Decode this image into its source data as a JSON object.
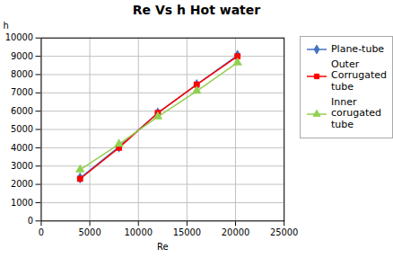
{
  "chart_data": {
    "type": "line",
    "title": "Re  Vs h Hot water",
    "x_label": "Re",
    "y_label": "h",
    "xlim": [
      0,
      25000
    ],
    "ylim": [
      0,
      10000
    ],
    "xticks": [
      0,
      5000,
      10000,
      15000,
      20000,
      25000
    ],
    "yticks": [
      0,
      1000,
      2000,
      3000,
      4000,
      5000,
      6000,
      7000,
      8000,
      9000,
      10000
    ],
    "grid": true,
    "legend": "right",
    "x": [
      4000,
      8000,
      12000,
      16000,
      20200
    ],
    "series": [
      {
        "name": "Plane-tube",
        "color": "#4472c4",
        "marker": "diamond",
        "values": [
          2350,
          4050,
          5900,
          7450,
          9050
        ]
      },
      {
        "name": "Outer\nCorrugated\ntube",
        "color": "#ff0000",
        "marker": "square",
        "values": [
          2300,
          4000,
          5900,
          7450,
          9000
        ]
      },
      {
        "name": "Inner\ncorugated\ntube",
        "color": "#92d050",
        "marker": "triangle",
        "values": [
          2800,
          4200,
          5700,
          7100,
          8650
        ]
      }
    ]
  }
}
